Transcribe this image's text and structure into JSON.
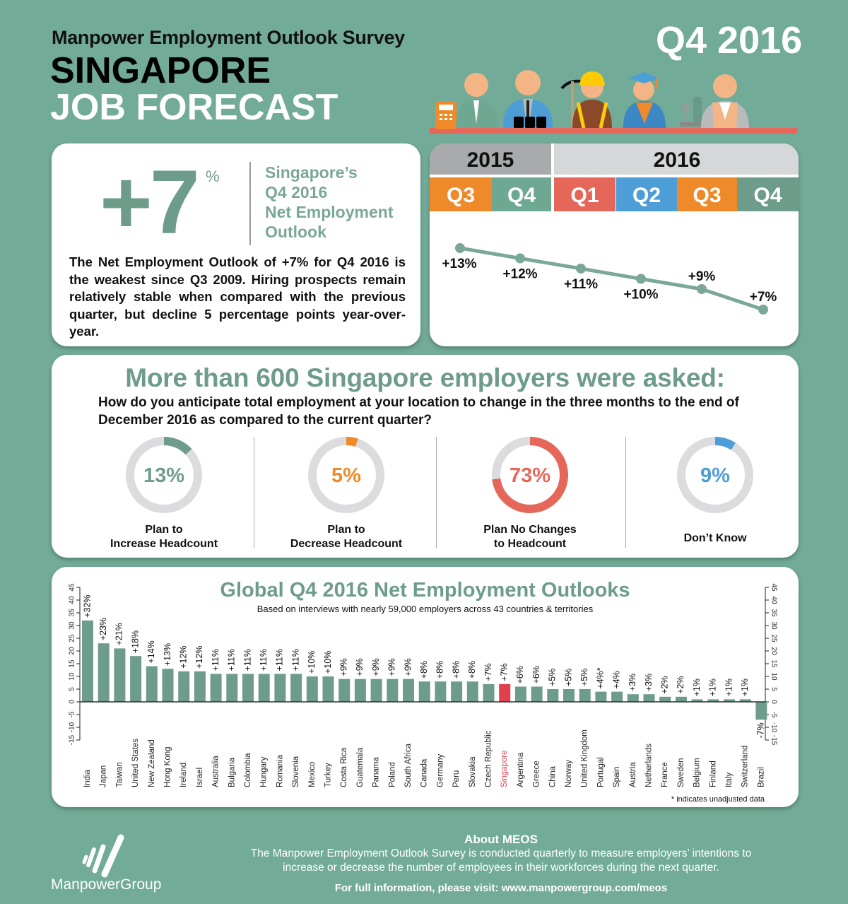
{
  "header": {
    "survey_title": "Manpower Employment Outlook Survey",
    "country": "SINGAPORE",
    "subtitle": "JOB FORECAST",
    "quarter": "Q4 2016"
  },
  "summary": {
    "value": "+7",
    "unit": "%",
    "label_lines": [
      "Singapore’s",
      "Q4 2016",
      "Net Employment",
      "Outlook"
    ],
    "description": "The Net Employment Outlook of +7% for Q4 2016 is the weakest since Q3 2009. Hiring prospects remain relatively stable when compared with the previous quarter, but decline 5 percentage points year-over-year."
  },
  "trend": {
    "years": [
      {
        "label": "2015",
        "color": "#a9aaac"
      },
      {
        "label": "2016",
        "color": "#d6d7d9"
      }
    ],
    "quarters": [
      {
        "label": "Q3",
        "color": "#ef8a2b",
        "value": 13,
        "text": "+13%"
      },
      {
        "label": "Q4",
        "color": "#6fa892",
        "value": 12,
        "text": "+12%"
      },
      {
        "label": "Q1",
        "color": "#e5675a",
        "value": 11,
        "text": "+11%"
      },
      {
        "label": "Q2",
        "color": "#4d9dd6",
        "value": 10,
        "text": "+10%"
      },
      {
        "label": "Q3",
        "color": "#ef8a2b",
        "value": 9,
        "text": "+9%"
      },
      {
        "label": "Q4",
        "color": "#6e9c8b",
        "value": 7,
        "text": "+7%"
      }
    ],
    "line_color": "#7aa796"
  },
  "question": {
    "title": "More than 600 Singapore employers were asked:",
    "text": "How do you anticipate total employment at your location to change in the three months to the end of December 2016 as compared to the current quarter?",
    "answers": [
      {
        "value": 13,
        "text": "13%",
        "label_lines": [
          "Plan to",
          "Increase Headcount"
        ],
        "color": "#6e9c8b"
      },
      {
        "value": 5,
        "text": "5%",
        "label_lines": [
          "Plan to",
          "Decrease Headcount"
        ],
        "color": "#ef8a2b"
      },
      {
        "value": 73,
        "text": "73%",
        "label_lines": [
          "Plan No Changes",
          "to Headcount"
        ],
        "color": "#e5675a"
      },
      {
        "value": 9,
        "text": "9%",
        "label_lines": [
          "Don’t Know"
        ],
        "color": "#4d9dd6"
      }
    ],
    "track_color": "#dcdcde"
  },
  "chart_data": {
    "type": "bar",
    "title": "Global Q4 2016 Net Employment Outlooks",
    "subtitle": "Based on interviews with nearly 59,000 employers across 43 countries & territories",
    "note": "* indicates unadjusted data",
    "ylim": [
      -15,
      45
    ],
    "yticks": [
      -15,
      -10,
      -5,
      0,
      5,
      10,
      15,
      20,
      25,
      30,
      35,
      40,
      45
    ],
    "bar_color": "#6e9c8b",
    "highlight_color": "#e0404e",
    "highlight": "Singapore",
    "categories": [
      "India",
      "Japan",
      "Taiwan",
      "United States",
      "New Zealand",
      "Hong Kong",
      "Ireland",
      "Israel",
      "Australia",
      "Bulgaria",
      "Colombia",
      "Hungary",
      "Romania",
      "Slovenia",
      "Mexico",
      "Turkey",
      "Costa Rica",
      "Guatemala",
      "Panama",
      "Poland",
      "South Africa",
      "Canada",
      "Germany",
      "Peru",
      "Slovakia",
      "Czech Republic",
      "Singapore",
      "Argentina",
      "Greece",
      "China",
      "Norway",
      "United Kingdom",
      "Portugal",
      "Spain",
      "Austria",
      "Netherlands",
      "France",
      "Sweden",
      "Belgium",
      "Finland",
      "Italy",
      "Switzerland",
      "Brazil"
    ],
    "values": [
      32,
      23,
      21,
      18,
      14,
      13,
      12,
      12,
      11,
      11,
      11,
      11,
      11,
      11,
      10,
      10,
      9,
      9,
      9,
      9,
      9,
      8,
      8,
      8,
      8,
      7,
      7,
      6,
      6,
      5,
      5,
      5,
      4,
      4,
      3,
      3,
      2,
      2,
      1,
      1,
      1,
      1,
      -7
    ],
    "labels": [
      "+32%",
      "+23%",
      "+21%",
      "+18%",
      "+14%",
      "+13%",
      "+12%",
      "+12%",
      "+11%",
      "+11%",
      "+11%",
      "+11%",
      "+11%",
      "+11%",
      "+10%",
      "+10%",
      "+9%",
      "+9%",
      "+9%",
      "+9%",
      "+9%",
      "+8%",
      "+8%",
      "+8%",
      "+8%",
      "+7%",
      "+7%",
      "+6%",
      "+6%",
      "+5%",
      "+5%",
      "+5%",
      "+4%*",
      "+4%",
      "+3%",
      "+3%",
      "+2%",
      "+2%",
      "+1%",
      "+1%",
      "+1%",
      "+1%",
      "-7%"
    ]
  },
  "footer": {
    "brand": "ManpowerGroup",
    "about_title": "About MEOS",
    "about_text": "The Manpower Employment Outlook Survey is conducted quarterly to measure employers’ intentions to increase or decrease the number of employees in their workforces during the next quarter.",
    "link_text": "For full information, please visit: www.manpowergroup.com/meos"
  }
}
